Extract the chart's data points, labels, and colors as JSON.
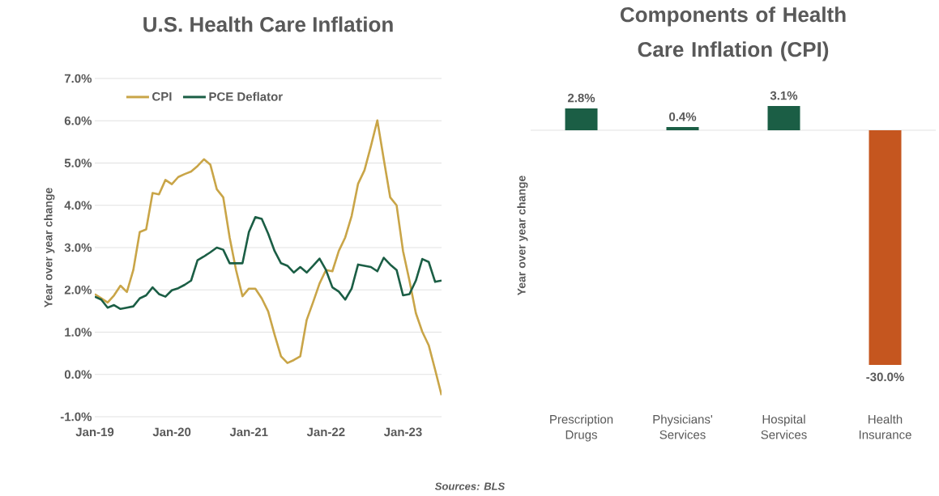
{
  "chart_data": [
    {
      "type": "line",
      "title": "U.S. Health Care Inflation",
      "ylabel": "Year over year change",
      "x": [
        "2019-01",
        "2019-02",
        "2019-03",
        "2019-04",
        "2019-05",
        "2019-06",
        "2019-07",
        "2019-08",
        "2019-09",
        "2019-10",
        "2019-11",
        "2019-12",
        "2020-01",
        "2020-02",
        "2020-03",
        "2020-04",
        "2020-05",
        "2020-06",
        "2020-07",
        "2020-08",
        "2020-09",
        "2020-10",
        "2020-11",
        "2020-12",
        "2021-01",
        "2021-02",
        "2021-03",
        "2021-04",
        "2021-05",
        "2021-06",
        "2021-07",
        "2021-08",
        "2021-09",
        "2021-10",
        "2021-11",
        "2021-12",
        "2022-01",
        "2022-02",
        "2022-03",
        "2022-04",
        "2022-05",
        "2022-06",
        "2022-07",
        "2022-08",
        "2022-09",
        "2022-10",
        "2022-11",
        "2022-12",
        "2023-01",
        "2023-02",
        "2023-03",
        "2023-04",
        "2023-05",
        "2023-06",
        "2023-07"
      ],
      "series": [
        {
          "name": "CPI",
          "color": "#c9a548",
          "values": [
            1.9,
            1.8,
            1.7,
            1.87,
            2.1,
            1.95,
            2.47,
            3.37,
            3.43,
            4.29,
            4.26,
            4.6,
            4.5,
            4.67,
            4.74,
            4.8,
            4.93,
            5.09,
            4.96,
            4.38,
            4.19,
            3.24,
            2.47,
            1.85,
            2.03,
            2.03,
            1.8,
            1.49,
            0.94,
            0.43,
            0.27,
            0.34,
            0.43,
            1.29,
            1.71,
            2.15,
            2.47,
            2.44,
            2.92,
            3.24,
            3.75,
            4.51,
            4.83,
            5.4,
            6.01,
            5.09,
            4.19,
            4.0,
            2.92,
            2.22,
            1.45,
            1.01,
            0.69,
            0.11,
            -0.49
          ]
        },
        {
          "name": "PCE Deflator",
          "color": "#1b5e45",
          "values": [
            1.84,
            1.77,
            1.58,
            1.64,
            1.55,
            1.58,
            1.61,
            1.8,
            1.87,
            2.06,
            1.9,
            1.84,
            1.99,
            2.04,
            2.12,
            2.22,
            2.7,
            2.79,
            2.89,
            3.0,
            2.95,
            2.63,
            2.63,
            2.63,
            3.37,
            3.72,
            3.68,
            3.33,
            2.92,
            2.63,
            2.57,
            2.41,
            2.54,
            2.41,
            2.57,
            2.74,
            2.47,
            2.06,
            1.96,
            1.77,
            2.03,
            2.6,
            2.57,
            2.54,
            2.44,
            2.76,
            2.6,
            2.47,
            1.87,
            1.9,
            2.22,
            2.73,
            2.66,
            2.19,
            2.22
          ]
        }
      ],
      "xlim": [
        "2019-01",
        "2023-07"
      ],
      "xticks": [
        {
          "value": "2019-01",
          "label": "Jan-19"
        },
        {
          "value": "2020-01",
          "label": "Jan-20"
        },
        {
          "value": "2021-01",
          "label": "Jan-21"
        },
        {
          "value": "2022-01",
          "label": "Jan-22"
        },
        {
          "value": "2023-01",
          "label": "Jan-23"
        }
      ],
      "ylim": [
        -1,
        7
      ],
      "yticks": [
        {
          "value": -1,
          "label": "-1.0%"
        },
        {
          "value": 0,
          "label": "0.0%"
        },
        {
          "value": 1,
          "label": "1.0%"
        },
        {
          "value": 2,
          "label": "2.0%"
        },
        {
          "value": 3,
          "label": "3.0%"
        },
        {
          "value": 4,
          "label": "4.0%"
        },
        {
          "value": 5,
          "label": "5.0%"
        },
        {
          "value": 6,
          "label": "6.0%"
        },
        {
          "value": 7,
          "label": "7.0%"
        }
      ],
      "grid": "y",
      "legend": "top",
      "marker": "none",
      "annotations": [
        "Sources: BLS"
      ]
    },
    {
      "type": "bar",
      "title": "Components of Health Care Inflation (CPI)",
      "ylabel": "Year over year change",
      "categories": [
        "Prescription Drugs",
        "Physicians' Services",
        "Hospital Services",
        "Health Insurance"
      ],
      "values": [
        2.8,
        0.4,
        3.1,
        -30.0
      ],
      "colors": [
        "#1b5e45",
        "#1b5e45",
        "#1b5e45",
        "#c5561f"
      ],
      "value_labels": [
        "2.8%",
        "0.4%",
        "3.1%",
        "-30.0%"
      ]
    }
  ]
}
